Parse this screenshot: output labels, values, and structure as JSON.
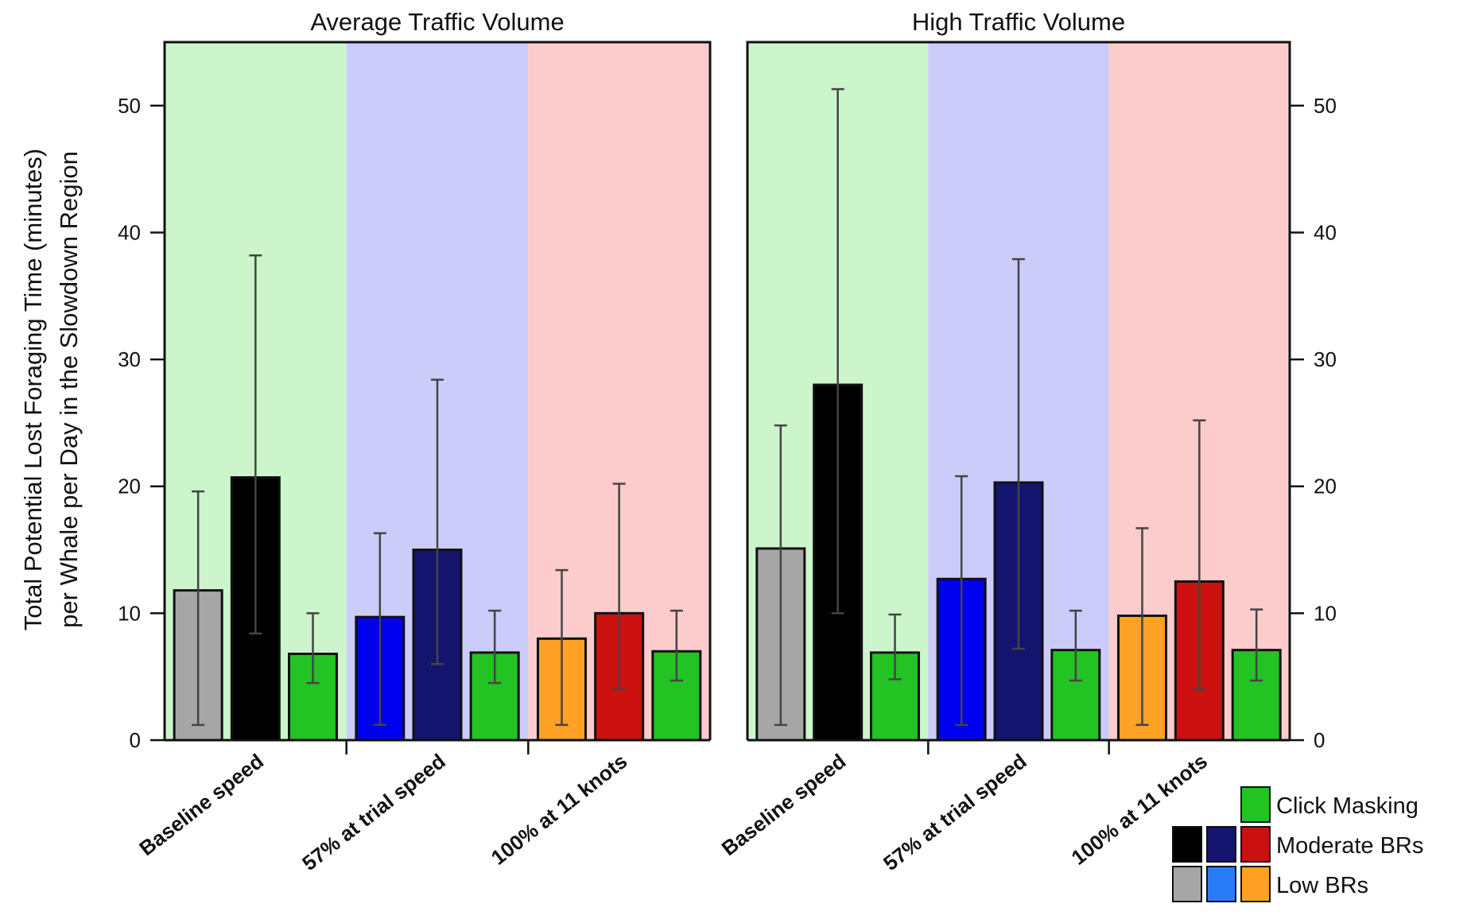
{
  "chart_data": {
    "type": "bar",
    "ylabel_line1": "Total Potential Lost Foraging Time (minutes)",
    "ylabel_line2": "per Whale per Day in the Slowdown Region",
    "ylim": [
      0,
      55
    ],
    "yticks": [
      0,
      10,
      20,
      30,
      40,
      50
    ],
    "categories": [
      "Baseline speed",
      "57% at trial speed",
      "100% at 11 knots"
    ],
    "category_backgrounds": [
      "#ccf5cc",
      "#ccccfa",
      "#fccccc"
    ],
    "bar_order": [
      "Low BRs",
      "Moderate BRs",
      "Click Masking"
    ],
    "bar_colors": [
      [
        "#a6a6a6",
        "#000000",
        "#22c322"
      ],
      [
        "#0000f0",
        "#14146e",
        "#22c322"
      ],
      [
        "#ffa125",
        "#cc1010",
        "#22c322"
      ]
    ],
    "panels": [
      {
        "title": "Average Traffic Volume",
        "groups": [
          {
            "category": "Baseline speed",
            "bars": [
              {
                "series": "Low BRs",
                "value": 11.8,
                "err_low": 1.2,
                "err_high": 19.6
              },
              {
                "series": "Moderate BRs",
                "value": 20.7,
                "err_low": 8.4,
                "err_high": 38.2
              },
              {
                "series": "Click Masking",
                "value": 6.8,
                "err_low": 4.5,
                "err_high": 10.0
              }
            ]
          },
          {
            "category": "57% at trial speed",
            "bars": [
              {
                "series": "Low BRs",
                "value": 9.7,
                "err_low": 1.2,
                "err_high": 16.3
              },
              {
                "series": "Moderate BRs",
                "value": 15.0,
                "err_low": 6.0,
                "err_high": 28.4
              },
              {
                "series": "Click Masking",
                "value": 6.9,
                "err_low": 4.5,
                "err_high": 10.2
              }
            ]
          },
          {
            "category": "100% at 11 knots",
            "bars": [
              {
                "series": "Low BRs",
                "value": 8.0,
                "err_low": 1.2,
                "err_high": 13.4
              },
              {
                "series": "Moderate BRs",
                "value": 10.0,
                "err_low": 4.0,
                "err_high": 20.2
              },
              {
                "series": "Click Masking",
                "value": 7.0,
                "err_low": 4.7,
                "err_high": 10.2
              }
            ]
          }
        ]
      },
      {
        "title": "High Traffic Volume",
        "groups": [
          {
            "category": "Baseline speed",
            "bars": [
              {
                "series": "Low BRs",
                "value": 15.1,
                "err_low": 1.2,
                "err_high": 24.8
              },
              {
                "series": "Moderate BRs",
                "value": 28.0,
                "err_low": 10.0,
                "err_high": 51.3
              },
              {
                "series": "Click Masking",
                "value": 6.9,
                "err_low": 4.8,
                "err_high": 9.9
              }
            ]
          },
          {
            "category": "57% at trial speed",
            "bars": [
              {
                "series": "Low BRs",
                "value": 12.7,
                "err_low": 1.2,
                "err_high": 20.8
              },
              {
                "series": "Moderate BRs",
                "value": 20.3,
                "err_low": 7.2,
                "err_high": 37.9
              },
              {
                "series": "Click Masking",
                "value": 7.1,
                "err_low": 4.7,
                "err_high": 10.2
              }
            ]
          },
          {
            "category": "100% at 11 knots",
            "bars": [
              {
                "series": "Low BRs",
                "value": 9.8,
                "err_low": 1.2,
                "err_high": 16.7
              },
              {
                "series": "Moderate BRs",
                "value": 12.5,
                "err_low": 4.0,
                "err_high": 25.2
              },
              {
                "series": "Click Masking",
                "value": 7.1,
                "err_low": 4.7,
                "err_high": 10.3
              }
            ]
          }
        ]
      }
    ],
    "legend": {
      "position": "bottom-right",
      "rows": [
        {
          "label": "Click Masking",
          "colors": [
            "#22c322"
          ]
        },
        {
          "label": "Moderate BRs",
          "colors": [
            "#000000",
            "#14146e",
            "#cc1010"
          ]
        },
        {
          "label": "Low BRs",
          "colors": [
            "#a6a6a6",
            "#2a7cf6",
            "#ffa125"
          ]
        }
      ]
    }
  }
}
